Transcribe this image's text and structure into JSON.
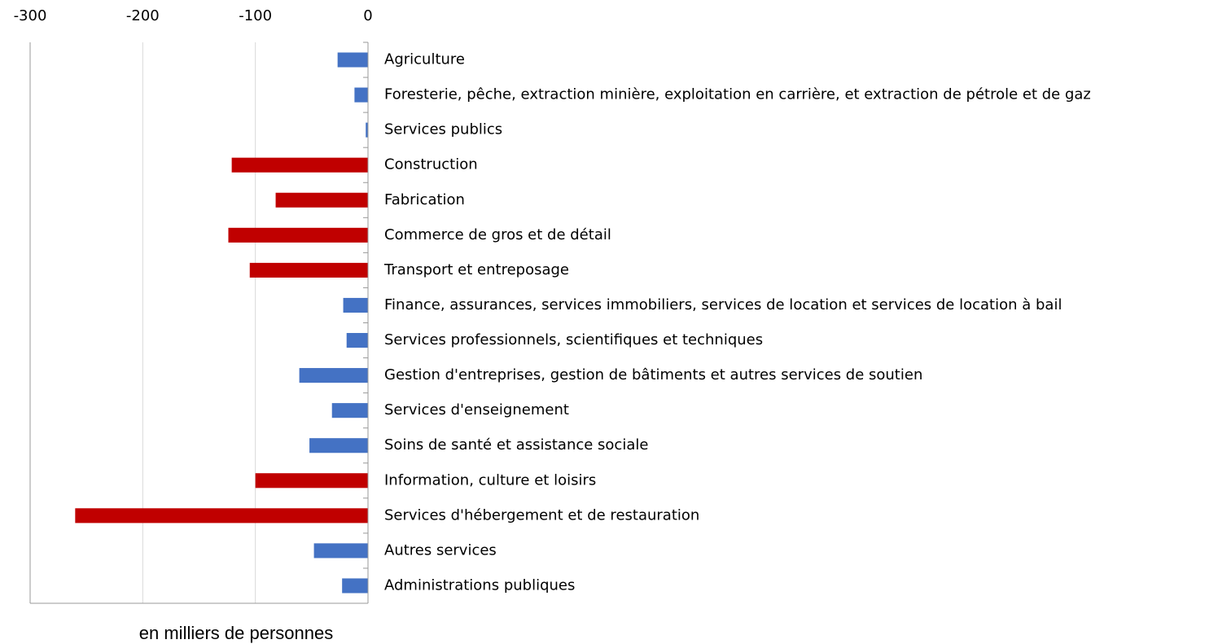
{
  "chart_data": {
    "type": "barh",
    "x_label": "en milliers de personnes",
    "categories": [
      "Agriculture",
      "Foresterie, pêche, extraction minière, exploitation en carrière, et extraction de pétrole et de gaz",
      "Services publics",
      "Construction",
      "Fabrication",
      "Commerce de gros et de détail",
      "Transport et entreposage",
      "Finance, assurances, services immobiliers, services de location et services de location à bail",
      "Services professionnels, scientifiques et techniques",
      "Gestion d'entreprises, gestion de bâtiments et autres services de soutien",
      "Services d'enseignement",
      "Soins de santé et assistance sociale",
      "Information, culture et loisirs",
      "Services d'hébergement et de restauration",
      "Autres services",
      "Administrations publiques"
    ],
    "values": [
      -27,
      -12,
      -2,
      -121,
      -82,
      -124,
      -105,
      -22,
      -19,
      -61,
      -32,
      -52,
      -100,
      -260,
      -48,
      -23
    ],
    "colors": [
      "#4472c4",
      "#4472c4",
      "#4472c4",
      "#c00000",
      "#c00000",
      "#c00000",
      "#c00000",
      "#4472c4",
      "#4472c4",
      "#4472c4",
      "#4472c4",
      "#4472c4",
      "#c00000",
      "#c00000",
      "#4472c4",
      "#4472c4"
    ],
    "xlim": [
      -300,
      0
    ],
    "xticks": [
      -300,
      -200,
      -100,
      0
    ],
    "grid": true
  }
}
